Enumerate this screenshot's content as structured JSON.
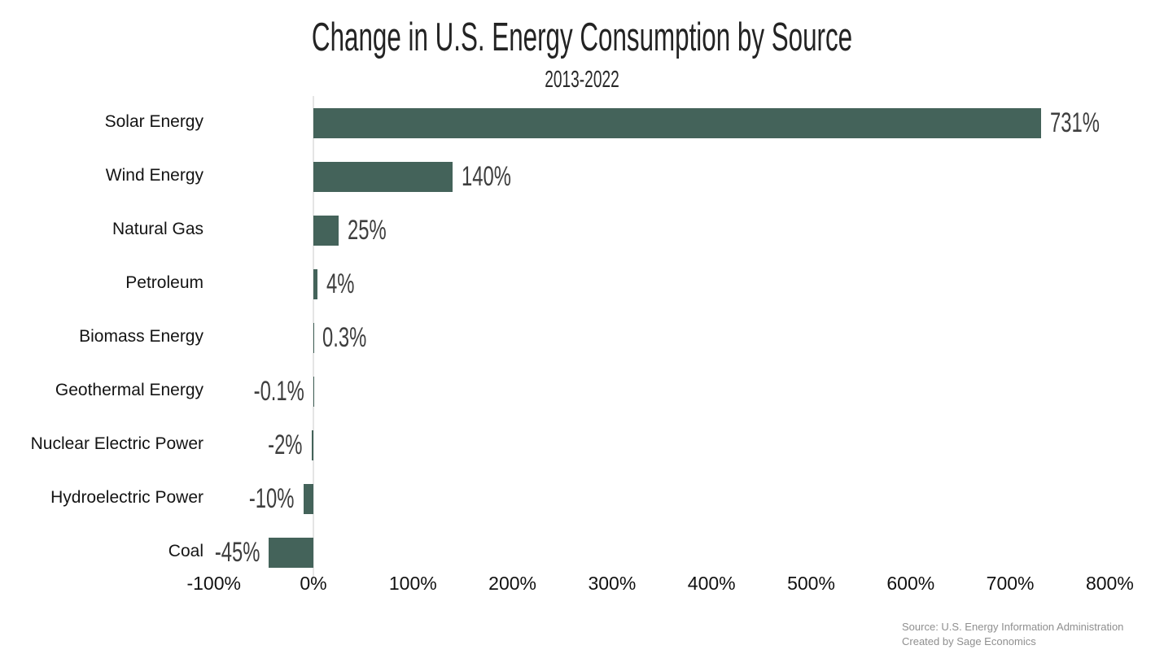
{
  "chart_data": {
    "type": "bar",
    "orientation": "horizontal",
    "title": "Change in U.S. Energy Consumption by Source",
    "subtitle": "2013-2022",
    "categories": [
      "Solar Energy",
      "Wind Energy",
      "Natural Gas",
      "Petroleum",
      "Biomass Energy",
      "Geothermal Energy",
      "Nuclear Electric Power",
      "Hydroelectric Power",
      "Coal"
    ],
    "values": [
      731,
      140,
      25,
      4,
      0.3,
      -0.1,
      -2,
      -10,
      -45
    ],
    "value_labels": [
      "731%",
      "140%",
      "25%",
      "4%",
      "0.3%",
      "-0.1%",
      "-2%",
      "-10%",
      "-45%"
    ],
    "xlabel": "",
    "ylabel": "",
    "xlim": [
      -100,
      800
    ],
    "x_ticks": [
      -100,
      0,
      100,
      200,
      300,
      400,
      500,
      600,
      700,
      800
    ],
    "x_tick_labels": [
      "-100%",
      "0%",
      "100%",
      "200%",
      "300%",
      "400%",
      "500%",
      "600%",
      "700%",
      "800%"
    ],
    "grid": false,
    "legend": "none",
    "bar_color": "#44635a",
    "value_label_color": "#3e3e3e",
    "axis_line_color": "#e5e5e5"
  },
  "footer": {
    "source_line1": "Source: U.S. Energy Information Administration",
    "source_line2": "Created by Sage Economics"
  }
}
